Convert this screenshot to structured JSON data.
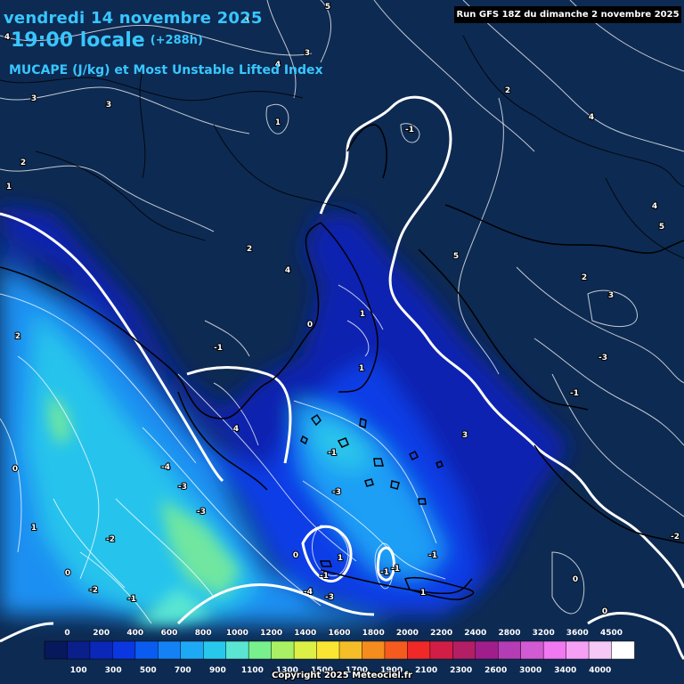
{
  "header": {
    "date_line": "vendredi 14 novembre 2025",
    "time_line": "19:00 locale",
    "offset": "(+288h)",
    "parameter": "MUCAPE (J/kg) et Most Unstable Lifted Index",
    "run_info": "Run GFS 18Z du dimanche 2 novembre 2025",
    "copyright": "Copyright 2025 Meteociel.fr"
  },
  "legend": {
    "top_ticks": [
      "0",
      "200",
      "400",
      "600",
      "800",
      "1000",
      "1200",
      "1400",
      "1600",
      "1800",
      "2000",
      "2200",
      "2400",
      "2800",
      "3200",
      "3600",
      "4500"
    ],
    "bottom_ticks": [
      "100",
      "300",
      "500",
      "700",
      "900",
      "1100",
      "1300",
      "1500",
      "1700",
      "1900",
      "2100",
      "2300",
      "2600",
      "3000",
      "3400",
      "4000"
    ],
    "colors": [
      "#07185c",
      "#0a1f8a",
      "#0a27b8",
      "#0a37e0",
      "#0a5cf0",
      "#1482f5",
      "#1ea9f5",
      "#28c8ec",
      "#5ae6d2",
      "#78f08c",
      "#aaf064",
      "#dcf046",
      "#fae632",
      "#f5be28",
      "#f58c1e",
      "#f55a1e",
      "#f02828",
      "#d21e46",
      "#b41e64",
      "#a01e8c",
      "#b43cb4",
      "#d25ad2",
      "#f078f0",
      "#f5a0f5",
      "#f5c8f5",
      "#ffffff"
    ]
  },
  "lifted_index_labels": [
    "3",
    "5",
    "4",
    "3",
    "4",
    "3",
    "3",
    "4",
    "1",
    "2",
    "2",
    "1",
    "2",
    "-1",
    "4",
    "5",
    "5",
    "2",
    "3",
    "4",
    "1",
    "0",
    "-1",
    "-3",
    "1",
    "-1",
    "4",
    "3",
    "2",
    "-1",
    "0",
    "-4",
    "-3",
    "-3",
    "-3",
    "1",
    "-2",
    "-2",
    "-1",
    "0",
    "-2",
    "-1",
    "0",
    "-1",
    "1",
    "-4",
    "-3",
    "1",
    "0",
    "-1",
    "0",
    "-1"
  ]
}
